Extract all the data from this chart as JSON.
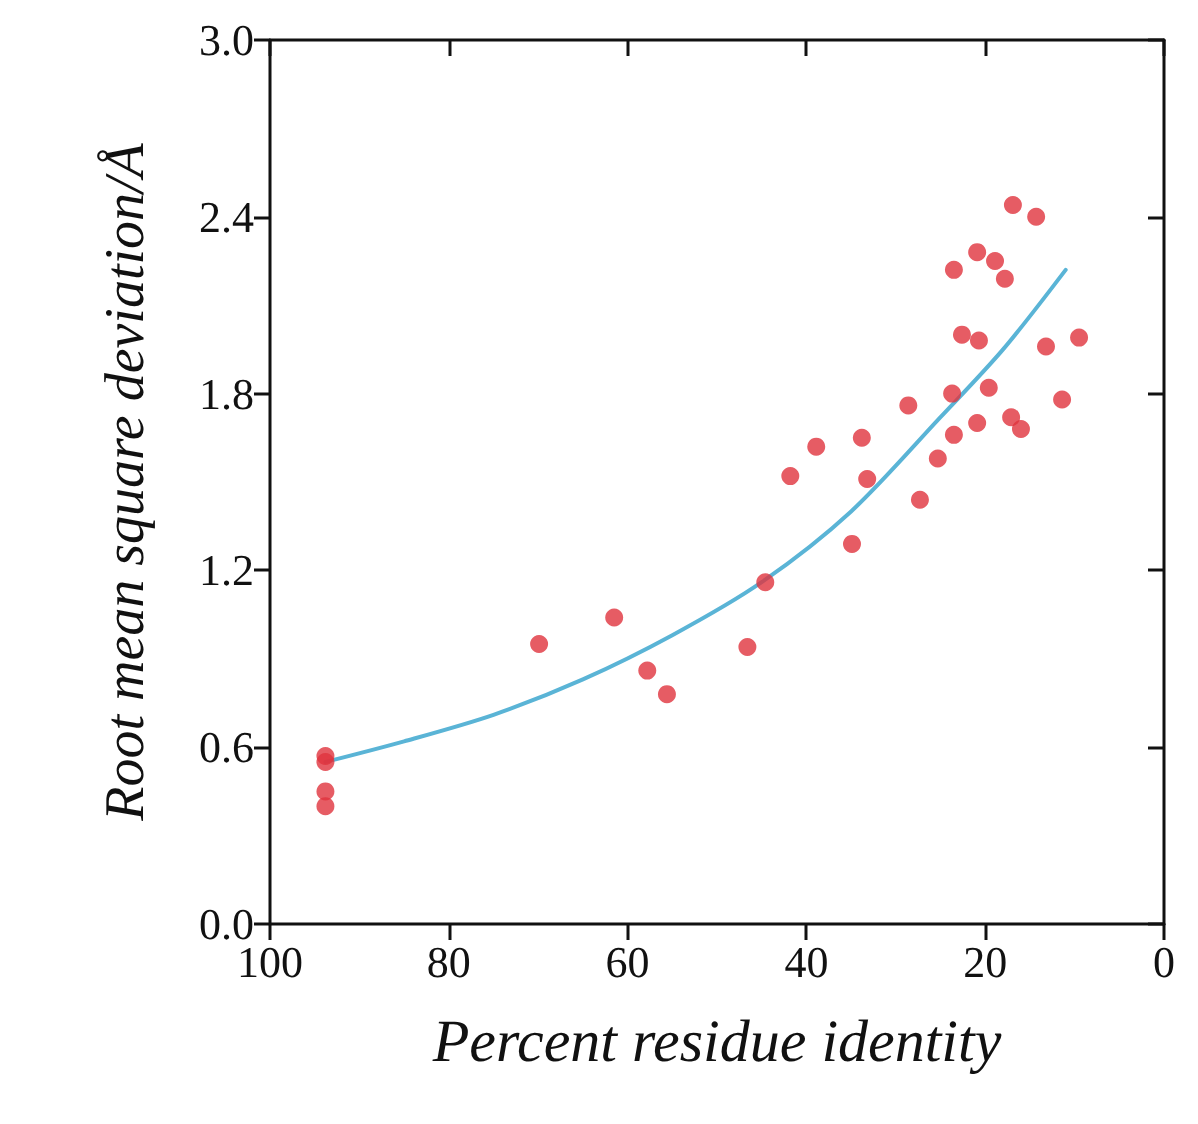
{
  "chart_data": {
    "type": "scatter",
    "xlabel": "Percent residue identity",
    "ylabel": "Root mean square deviation/Å",
    "xlim": [
      100,
      0
    ],
    "xticks": [
      100,
      80,
      60,
      40,
      20,
      0
    ],
    "ylim": [
      0,
      3
    ],
    "yticks": [
      {
        "value": 0,
        "label": "0.0"
      },
      {
        "value": 0.6,
        "label": "0.6"
      },
      {
        "value": 1.2,
        "label": "1.2"
      },
      {
        "value": 1.8,
        "label": "1.8"
      },
      {
        "value": 2.4,
        "label": "2.4"
      },
      {
        "value": 3,
        "label": "3.0"
      }
    ],
    "grid": false,
    "marker": "circle",
    "series": [
      {
        "color": "#e0333d",
        "x": [
          93.8,
          93.8,
          93.8,
          93.8,
          69.9,
          61.5,
          57.8,
          55.6,
          46.6,
          16.9,
          14.3,
          20.9,
          18.9,
          17.8,
          23.5,
          22.6,
          20.7,
          13.2,
          9.5,
          23.7,
          19.6,
          28.6,
          11.4,
          20.9,
          17.1,
          16.0,
          23.5,
          33.8,
          38.9,
          41.8,
          33.2,
          25.3,
          27.3,
          34.9,
          44.6
        ],
        "values": [
          0.57,
          0.55,
          0.45,
          0.4,
          0.95,
          1.04,
          0.86,
          0.78,
          0.94,
          2.44,
          2.4,
          2.28,
          2.25,
          2.19,
          2.22,
          2.0,
          1.98,
          1.96,
          1.99,
          1.8,
          1.82,
          1.76,
          1.78,
          1.7,
          1.72,
          1.68,
          1.66,
          1.65,
          1.62,
          1.52,
          1.51,
          1.58,
          1.44,
          1.29,
          1.16
        ]
      },
      {
        "type": "line",
        "color": "#5ab4d6",
        "line_style": "solid",
        "marker": "none",
        "x": [
          93.8,
          85,
          75,
          65,
          55,
          45,
          35,
          25,
          18,
          11
        ],
        "values": [
          0.55,
          0.62,
          0.71,
          0.83,
          0.98,
          1.16,
          1.4,
          1.72,
          1.95,
          2.22
        ]
      }
    ]
  }
}
